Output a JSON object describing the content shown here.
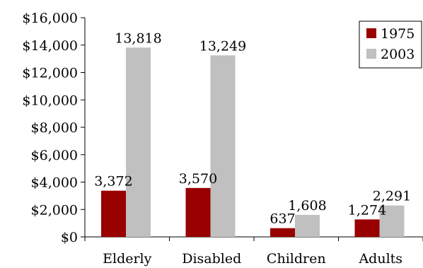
{
  "chart_data": {
    "type": "bar",
    "categories": [
      "Elderly",
      "Disabled",
      "Children",
      "Adults"
    ],
    "series": [
      {
        "name": "1975",
        "color": "#990000",
        "values": [
          3372,
          3570,
          637,
          1274
        ],
        "labels": [
          "3,372",
          "3,570",
          "637",
          "1,274"
        ]
      },
      {
        "name": "2003",
        "color": "#c0c0c0",
        "values": [
          13818,
          13249,
          1608,
          2291
        ],
        "labels": [
          "13,818",
          "13,249",
          "1,608",
          "2,291"
        ]
      }
    ],
    "ylim": [
      0,
      16000
    ],
    "yticks": [
      0,
      2000,
      4000,
      6000,
      8000,
      10000,
      12000,
      14000,
      16000
    ],
    "ytick_labels": [
      "$0",
      "$2,000",
      "$4,000",
      "$6,000",
      "$8,000",
      "$10,000",
      "$12,000",
      "$14,000",
      "$16,000"
    ],
    "grid": false,
    "legend": "top-right",
    "title": "",
    "xlabel": "",
    "ylabel": ""
  }
}
